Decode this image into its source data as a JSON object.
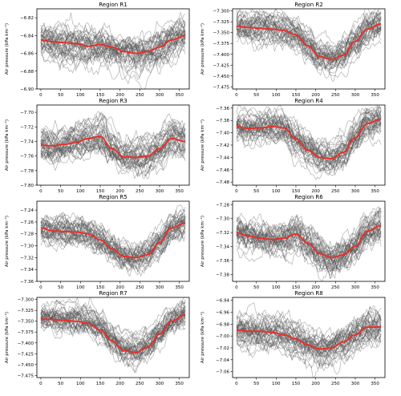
{
  "figure": {
    "ylabel": "Air pressure (kPa km⁻¹)",
    "colors": {
      "ensemble": "#555555",
      "mean": "#e8302a",
      "axes": "#000000"
    }
  },
  "chart_data": [
    {
      "type": "line",
      "title": "Region R1",
      "xlabel": "",
      "ylabel": "Air pressure (kPa km⁻¹)",
      "xlim": [
        -10,
        375
      ],
      "ylim": [
        -6.9,
        -6.81
      ],
      "xticks": [
        0,
        50,
        100,
        150,
        200,
        250,
        300,
        350
      ],
      "yticks": [
        -6.9,
        -6.88,
        -6.86,
        -6.84,
        -6.82
      ],
      "yticklabels": [
        "−6.90",
        "−6.88",
        "−6.86",
        "−6.84",
        "−6.82"
      ],
      "series": [
        {
          "role": "mean",
          "x": [
            0,
            30,
            60,
            90,
            120,
            150,
            180,
            210,
            240,
            270,
            300,
            330,
            365
          ],
          "y": [
            -6.845,
            -6.847,
            -6.848,
            -6.849,
            -6.852,
            -6.85,
            -6.853,
            -6.858,
            -6.86,
            -6.858,
            -6.853,
            -6.845,
            -6.84
          ]
        }
      ],
      "ensemble": {
        "members": 40,
        "spread": 0.014
      }
    },
    {
      "type": "line",
      "title": "Region R2",
      "xlabel": "",
      "ylabel": "Air pressure (kPa km⁻¹)",
      "xlim": [
        -10,
        375
      ],
      "ylim": [
        -7.48,
        -7.295
      ],
      "xticks": [
        0,
        50,
        100,
        150,
        200,
        250,
        300,
        350
      ],
      "yticks": [
        -7.475,
        -7.45,
        -7.425,
        -7.4,
        -7.375,
        -7.35,
        -7.325,
        -7.3
      ],
      "yticklabels": [
        "−7.475",
        "−7.450",
        "−7.425",
        "−7.400",
        "−7.375",
        "−7.350",
        "−7.325",
        "−7.300"
      ],
      "series": [
        {
          "role": "mean",
          "x": [
            0,
            30,
            60,
            90,
            120,
            150,
            180,
            210,
            240,
            270,
            300,
            330,
            365
          ],
          "y": [
            -7.335,
            -7.338,
            -7.34,
            -7.342,
            -7.345,
            -7.355,
            -7.38,
            -7.405,
            -7.412,
            -7.402,
            -7.37,
            -7.342,
            -7.33
          ]
        }
      ],
      "ensemble": {
        "members": 40,
        "spread": 0.025
      }
    },
    {
      "type": "line",
      "title": "Region R3",
      "xlabel": "",
      "ylabel": "Air pressure (kPa km⁻¹)",
      "xlim": [
        -10,
        375
      ],
      "ylim": [
        -7.8,
        -7.69
      ],
      "xticks": [
        0,
        50,
        100,
        150,
        200,
        250,
        300,
        350
      ],
      "yticks": [
        -7.8,
        -7.78,
        -7.76,
        -7.74,
        -7.72,
        -7.7
      ],
      "yticklabels": [
        "−7.80",
        "−7.78",
        "−7.76",
        "−7.74",
        "−7.72",
        "−7.70"
      ],
      "series": [
        {
          "role": "mean",
          "x": [
            0,
            30,
            60,
            90,
            120,
            150,
            180,
            210,
            240,
            270,
            300,
            330,
            365
          ],
          "y": [
            -7.745,
            -7.746,
            -7.744,
            -7.741,
            -7.736,
            -7.733,
            -7.75,
            -7.761,
            -7.762,
            -7.76,
            -7.75,
            -7.736,
            -7.74
          ]
        }
      ],
      "ensemble": {
        "members": 40,
        "spread": 0.016
      }
    },
    {
      "type": "line",
      "title": "Region R4",
      "xlabel": "",
      "ylabel": "Air pressure (kPa km⁻¹)",
      "xlim": [
        -10,
        375
      ],
      "ylim": [
        -7.485,
        -7.355
      ],
      "xticks": [
        0,
        50,
        100,
        150,
        200,
        250,
        300,
        350
      ],
      "yticks": [
        -7.48,
        -7.46,
        -7.44,
        -7.42,
        -7.4,
        -7.38,
        -7.36
      ],
      "yticklabels": [
        "−7.48",
        "−7.46",
        "−7.44",
        "−7.42",
        "−7.40",
        "−7.38",
        "−7.36"
      ],
      "series": [
        {
          "role": "mean",
          "x": [
            0,
            30,
            60,
            90,
            120,
            150,
            180,
            210,
            240,
            270,
            300,
            330,
            365
          ],
          "y": [
            -7.39,
            -7.393,
            -7.392,
            -7.39,
            -7.392,
            -7.41,
            -7.428,
            -7.44,
            -7.442,
            -7.432,
            -7.408,
            -7.385,
            -7.378
          ]
        }
      ],
      "ensemble": {
        "members": 40,
        "spread": 0.018
      }
    },
    {
      "type": "line",
      "title": "Region R5",
      "xlabel": "",
      "ylabel": "Air pressure (kPa km⁻¹)",
      "xlim": [
        -10,
        375
      ],
      "ylim": [
        -7.36,
        -7.225
      ],
      "xticks": [
        0,
        50,
        100,
        150,
        200,
        250,
        300,
        350
      ],
      "yticks": [
        -7.36,
        -7.34,
        -7.32,
        -7.3,
        -7.28,
        -7.26,
        -7.24
      ],
      "yticklabels": [
        "−7.36",
        "−7.34",
        "−7.32",
        "−7.30",
        "−7.28",
        "−7.26",
        "−7.24"
      ],
      "series": [
        {
          "role": "mean",
          "x": [
            0,
            30,
            60,
            90,
            120,
            150,
            180,
            210,
            240,
            270,
            300,
            330,
            365
          ],
          "y": [
            -7.27,
            -7.275,
            -7.276,
            -7.277,
            -7.28,
            -7.29,
            -7.305,
            -7.318,
            -7.32,
            -7.315,
            -7.295,
            -7.27,
            -7.262
          ]
        }
      ],
      "ensemble": {
        "members": 40,
        "spread": 0.018
      }
    },
    {
      "type": "line",
      "title": "Region R6",
      "xlabel": "",
      "ylabel": "Air pressure (kPa km⁻¹)",
      "xlim": [
        -10,
        375
      ],
      "ylim": [
        -7.39,
        -7.275
      ],
      "xticks": [
        0,
        50,
        100,
        150,
        200,
        250,
        300,
        350
      ],
      "yticks": [
        -7.38,
        -7.36,
        -7.34,
        -7.32,
        -7.3,
        -7.28
      ],
      "yticklabels": [
        "−7.38",
        "−7.36",
        "−7.34",
        "−7.32",
        "−7.30",
        "−7.28"
      ],
      "series": [
        {
          "role": "mean",
          "x": [
            0,
            30,
            60,
            90,
            120,
            150,
            180,
            210,
            240,
            270,
            300,
            330,
            365
          ],
          "y": [
            -7.32,
            -7.325,
            -7.328,
            -7.33,
            -7.328,
            -7.322,
            -7.335,
            -7.35,
            -7.356,
            -7.352,
            -7.34,
            -7.318,
            -7.31
          ]
        }
      ],
      "ensemble": {
        "members": 40,
        "spread": 0.018
      }
    },
    {
      "type": "line",
      "title": "Region R7",
      "xlabel": "",
      "ylabel": "Air pressure (kPa km⁻¹)",
      "xlim": [
        -10,
        375
      ],
      "ylim": [
        -7.48,
        -7.295
      ],
      "xticks": [
        0,
        50,
        100,
        150,
        200,
        250,
        300,
        350
      ],
      "yticks": [
        -7.475,
        -7.45,
        -7.425,
        -7.4,
        -7.375,
        -7.35,
        -7.325,
        -7.3
      ],
      "yticklabels": [
        "−7.475",
        "−7.450",
        "−7.425",
        "−7.400",
        "−7.375",
        "−7.350",
        "−7.325",
        "−7.300"
      ],
      "series": [
        {
          "role": "mean",
          "x": [
            0,
            30,
            60,
            90,
            120,
            150,
            180,
            210,
            240,
            270,
            300,
            330,
            365
          ],
          "y": [
            -7.345,
            -7.346,
            -7.348,
            -7.35,
            -7.355,
            -7.37,
            -7.395,
            -7.418,
            -7.422,
            -7.41,
            -7.38,
            -7.35,
            -7.335
          ]
        }
      ],
      "ensemble": {
        "members": 40,
        "spread": 0.025
      }
    },
    {
      "type": "line",
      "title": "Region R8",
      "xlabel": "",
      "ylabel": "Air pressure (kPa km⁻¹)",
      "xlim": [
        -10,
        375
      ],
      "ylim": [
        -7.07,
        -6.935
      ],
      "xticks": [
        0,
        50,
        100,
        150,
        200,
        250,
        300,
        350
      ],
      "yticks": [
        -7.06,
        -7.04,
        -7.02,
        -7.0,
        -6.98,
        -6.96,
        -6.94
      ],
      "yticklabels": [
        "−7.06",
        "−7.04",
        "−7.02",
        "−7.00",
        "−6.98",
        "−6.96",
        "−6.94"
      ],
      "series": [
        {
          "role": "mean",
          "x": [
            0,
            30,
            60,
            90,
            120,
            150,
            180,
            210,
            240,
            270,
            300,
            330,
            365
          ],
          "y": [
            -6.99,
            -6.992,
            -6.992,
            -6.994,
            -6.998,
            -7.005,
            -7.015,
            -7.022,
            -7.02,
            -7.01,
            -6.998,
            -6.985,
            -6.985
          ]
        }
      ],
      "ensemble": {
        "members": 40,
        "spread": 0.02
      }
    }
  ]
}
